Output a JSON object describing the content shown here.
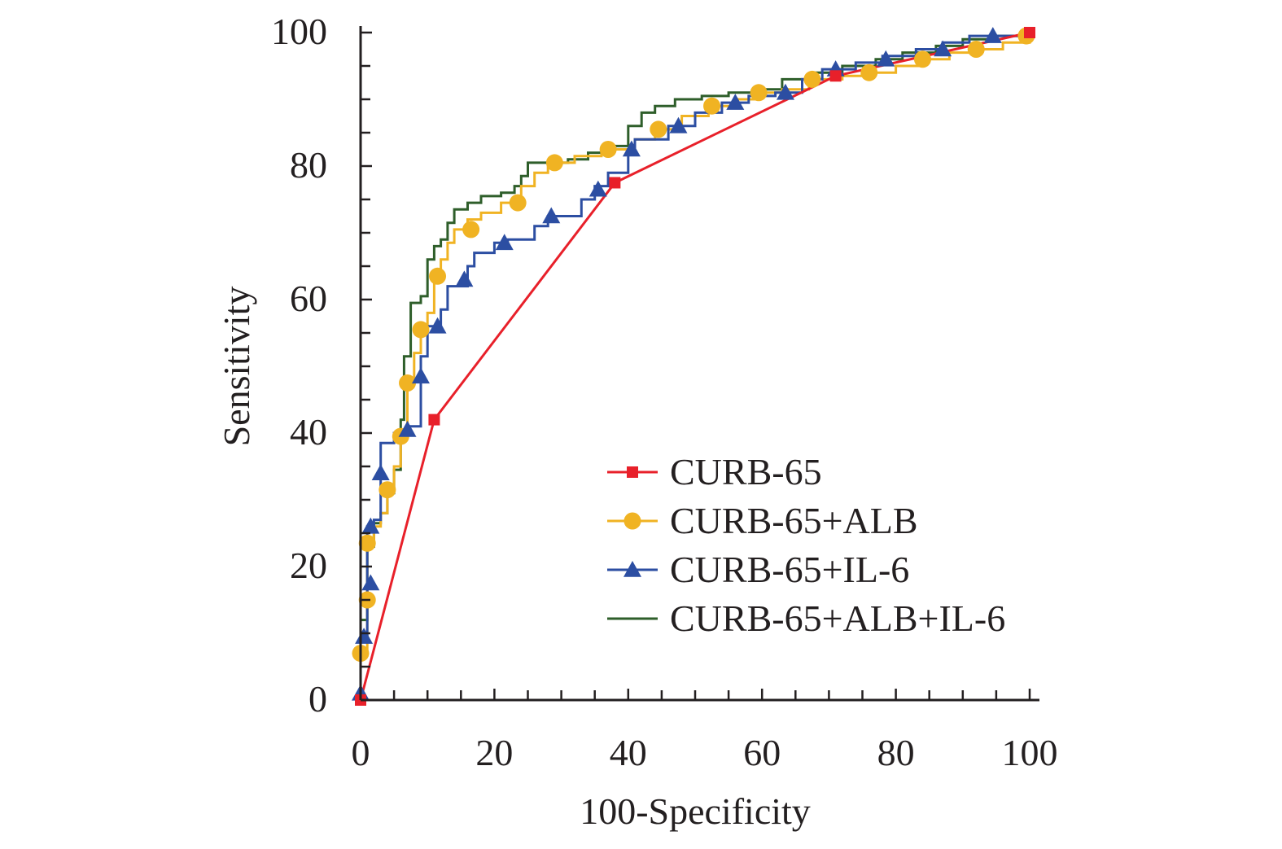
{
  "chart_data": {
    "type": "line",
    "title": "",
    "xlabel": "100-Specificity",
    "ylabel": "Sensitivity",
    "xlim": [
      0,
      100
    ],
    "ylim": [
      0,
      100
    ],
    "x_ticks": [
      "0",
      "20",
      "40",
      "60",
      "80",
      "100"
    ],
    "y_ticks": [
      "0",
      "20",
      "40",
      "60",
      "80",
      "100"
    ],
    "grid": false,
    "legend_placement": "bottom-right",
    "series": [
      {
        "name": "CURB-65",
        "color": "#e8202a",
        "marker": "square",
        "step": false,
        "points": [
          [
            0,
            0
          ],
          [
            11,
            42
          ],
          [
            38,
            77.5
          ],
          [
            71,
            93.5
          ],
          [
            100,
            100
          ]
        ],
        "marker_points": [
          [
            0,
            0
          ],
          [
            11,
            42
          ],
          [
            38,
            77.5
          ],
          [
            71,
            93.5
          ],
          [
            100,
            100
          ]
        ]
      },
      {
        "name": "CURB-65+ALB",
        "color": "#f0b323",
        "marker": "circle",
        "step": true,
        "points": [
          [
            0,
            0
          ],
          [
            0,
            7
          ],
          [
            1,
            7
          ],
          [
            1,
            15
          ],
          [
            1,
            23.5
          ],
          [
            2,
            23.5
          ],
          [
            2,
            26
          ],
          [
            3,
            26
          ],
          [
            3,
            28
          ],
          [
            4,
            28
          ],
          [
            4,
            31.5
          ],
          [
            5,
            31.5
          ],
          [
            5,
            35
          ],
          [
            6,
            35
          ],
          [
            6,
            39.5
          ],
          [
            7,
            39.5
          ],
          [
            7,
            47.5
          ],
          [
            8,
            47.5
          ],
          [
            8,
            52
          ],
          [
            9,
            52
          ],
          [
            9,
            55.5
          ],
          [
            10,
            55.5
          ],
          [
            10,
            58
          ],
          [
            11,
            58
          ],
          [
            11,
            63.5
          ],
          [
            12,
            63.5
          ],
          [
            12,
            66
          ],
          [
            13,
            66
          ],
          [
            13,
            68.5
          ],
          [
            14,
            68.5
          ],
          [
            14,
            70.5
          ],
          [
            16,
            70.5
          ],
          [
            16,
            72
          ],
          [
            18,
            72
          ],
          [
            18,
            73
          ],
          [
            21,
            73
          ],
          [
            21,
            74.5
          ],
          [
            24,
            74.5
          ],
          [
            24,
            77
          ],
          [
            26,
            77
          ],
          [
            26,
            79
          ],
          [
            28,
            79
          ],
          [
            28,
            80.5
          ],
          [
            32,
            80.5
          ],
          [
            32,
            81.5
          ],
          [
            36,
            81.5
          ],
          [
            36,
            82.5
          ],
          [
            41,
            82.5
          ],
          [
            41,
            84
          ],
          [
            44,
            84
          ],
          [
            44,
            85.5
          ],
          [
            48,
            85.5
          ],
          [
            48,
            87.5
          ],
          [
            52,
            87.5
          ],
          [
            52,
            89
          ],
          [
            56,
            89
          ],
          [
            56,
            90
          ],
          [
            59,
            90
          ],
          [
            59,
            91
          ],
          [
            63,
            91
          ],
          [
            63,
            91.5
          ],
          [
            67,
            91.5
          ],
          [
            67,
            93
          ],
          [
            72,
            93
          ],
          [
            72,
            93.5
          ],
          [
            76,
            93.5
          ],
          [
            76,
            94
          ],
          [
            80,
            94
          ],
          [
            80,
            95
          ],
          [
            84,
            95
          ],
          [
            84,
            96
          ],
          [
            88,
            96
          ],
          [
            88,
            97
          ],
          [
            92,
            97
          ],
          [
            92,
            97.5
          ],
          [
            96,
            97.5
          ],
          [
            96,
            98.5
          ],
          [
            100,
            98.5
          ],
          [
            100,
            100
          ]
        ],
        "marker_points": [
          [
            0,
            7
          ],
          [
            1,
            15
          ],
          [
            1,
            23.5
          ],
          [
            4,
            31.5
          ],
          [
            6,
            39.5
          ],
          [
            7,
            47.5
          ],
          [
            9,
            55.5
          ],
          [
            11.5,
            63.5
          ],
          [
            16.5,
            70.5
          ],
          [
            23.5,
            74.5
          ],
          [
            29,
            80.5
          ],
          [
            37,
            82.5
          ],
          [
            44.5,
            85.5
          ],
          [
            52.5,
            89
          ],
          [
            59.5,
            91
          ],
          [
            67.5,
            93
          ],
          [
            76,
            94
          ],
          [
            84,
            96
          ],
          [
            92,
            97.5
          ],
          [
            99.5,
            99.5
          ]
        ]
      },
      {
        "name": "CURB-65+IL-6",
        "color": "#2c4ea2",
        "marker": "triangle",
        "step": true,
        "points": [
          [
            0,
            0
          ],
          [
            0,
            1
          ],
          [
            0,
            9.5
          ],
          [
            1,
            9.5
          ],
          [
            1,
            17.5
          ],
          [
            1,
            26
          ],
          [
            2,
            26
          ],
          [
            2,
            27
          ],
          [
            3,
            27
          ],
          [
            3,
            34
          ],
          [
            3,
            38.5
          ],
          [
            5,
            38.5
          ],
          [
            5,
            40
          ],
          [
            7,
            40
          ],
          [
            7,
            41
          ],
          [
            9,
            41
          ],
          [
            9,
            48.5
          ],
          [
            9,
            51.5
          ],
          [
            10,
            51.5
          ],
          [
            10,
            56
          ],
          [
            12,
            56
          ],
          [
            12,
            58.5
          ],
          [
            13,
            58.5
          ],
          [
            13,
            62
          ],
          [
            16,
            62
          ],
          [
            16,
            65
          ],
          [
            17,
            65
          ],
          [
            17,
            67
          ],
          [
            20,
            67
          ],
          [
            20,
            68.5
          ],
          [
            22,
            68.5
          ],
          [
            22,
            69
          ],
          [
            26,
            69
          ],
          [
            26,
            71
          ],
          [
            28,
            71
          ],
          [
            28,
            72.5
          ],
          [
            33,
            72.5
          ],
          [
            33,
            75
          ],
          [
            35,
            75
          ],
          [
            35,
            77
          ],
          [
            37,
            77
          ],
          [
            37,
            79
          ],
          [
            40,
            79
          ],
          [
            40,
            82.5
          ],
          [
            41,
            82.5
          ],
          [
            41,
            84
          ],
          [
            46,
            84
          ],
          [
            46,
            86
          ],
          [
            50,
            86
          ],
          [
            50,
            88
          ],
          [
            54,
            88
          ],
          [
            54,
            89.5
          ],
          [
            58,
            89.5
          ],
          [
            58,
            90.5
          ],
          [
            62,
            90.5
          ],
          [
            62,
            91
          ],
          [
            66,
            91
          ],
          [
            66,
            93
          ],
          [
            69,
            93
          ],
          [
            69,
            94.5
          ],
          [
            74,
            94.5
          ],
          [
            74,
            95.5
          ],
          [
            78,
            95.5
          ],
          [
            78,
            96.5
          ],
          [
            83,
            96.5
          ],
          [
            83,
            97.5
          ],
          [
            87,
            97.5
          ],
          [
            87,
            98.5
          ],
          [
            91,
            98.5
          ],
          [
            91,
            99.5
          ],
          [
            100,
            99.5
          ],
          [
            100,
            100
          ]
        ],
        "marker_points": [
          [
            0,
            1
          ],
          [
            0.5,
            9.5
          ],
          [
            1.5,
            17.5
          ],
          [
            1.5,
            26
          ],
          [
            3,
            34
          ],
          [
            7,
            40.5
          ],
          [
            9,
            48.5
          ],
          [
            11.5,
            56
          ],
          [
            15.5,
            63
          ],
          [
            21.5,
            68.5
          ],
          [
            28.5,
            72.5
          ],
          [
            35.5,
            76.5
          ],
          [
            40.5,
            82.5
          ],
          [
            47.5,
            86
          ],
          [
            56,
            89.5
          ],
          [
            63.5,
            91
          ],
          [
            71,
            94.5
          ],
          [
            78.5,
            96
          ],
          [
            87,
            97.5
          ],
          [
            94.5,
            99.5
          ]
        ]
      },
      {
        "name": "CURB-65+ALB+IL-6",
        "color": "#2e5e2a",
        "marker": "none",
        "step": true,
        "points": [
          [
            0,
            0
          ],
          [
            0,
            12
          ],
          [
            1,
            12
          ],
          [
            1,
            23
          ],
          [
            2,
            23
          ],
          [
            2,
            26.5
          ],
          [
            3,
            26.5
          ],
          [
            3,
            28
          ],
          [
            4,
            28
          ],
          [
            4,
            31
          ],
          [
            5,
            31
          ],
          [
            5,
            34.5
          ],
          [
            6,
            34.5
          ],
          [
            6,
            42
          ],
          [
            6.5,
            42
          ],
          [
            6.5,
            51.5
          ],
          [
            7.5,
            51.5
          ],
          [
            7.5,
            59.5
          ],
          [
            9,
            59.5
          ],
          [
            9,
            60.5
          ],
          [
            10,
            60.5
          ],
          [
            10,
            66
          ],
          [
            11,
            66
          ],
          [
            11,
            68
          ],
          [
            12,
            68
          ],
          [
            12,
            69
          ],
          [
            13,
            69
          ],
          [
            13,
            71.5
          ],
          [
            14,
            71.5
          ],
          [
            14,
            73.5
          ],
          [
            16,
            73.5
          ],
          [
            16,
            74.5
          ],
          [
            18,
            74.5
          ],
          [
            18,
            75.5
          ],
          [
            21,
            75.5
          ],
          [
            21,
            76
          ],
          [
            23,
            76
          ],
          [
            23,
            77
          ],
          [
            24,
            77
          ],
          [
            24,
            78.5
          ],
          [
            25,
            78.5
          ],
          [
            25,
            80.5
          ],
          [
            31,
            80.5
          ],
          [
            31,
            81
          ],
          [
            34,
            81
          ],
          [
            34,
            82
          ],
          [
            37,
            82
          ],
          [
            37,
            83
          ],
          [
            40,
            83
          ],
          [
            40,
            86
          ],
          [
            42,
            86
          ],
          [
            42,
            88
          ],
          [
            44,
            88
          ],
          [
            44,
            89
          ],
          [
            47,
            89
          ],
          [
            47,
            90
          ],
          [
            51,
            90
          ],
          [
            51,
            90.5
          ],
          [
            55,
            90.5
          ],
          [
            55,
            91
          ],
          [
            60,
            91
          ],
          [
            60,
            91.5
          ],
          [
            63,
            91.5
          ],
          [
            63,
            93
          ],
          [
            68,
            93
          ],
          [
            68,
            94
          ],
          [
            72,
            94
          ],
          [
            72,
            95
          ],
          [
            77,
            95
          ],
          [
            77,
            96
          ],
          [
            81,
            96
          ],
          [
            81,
            97
          ],
          [
            86,
            97
          ],
          [
            86,
            98
          ],
          [
            90,
            98
          ],
          [
            90,
            99
          ],
          [
            95,
            99
          ],
          [
            95,
            99.5
          ],
          [
            100,
            99.5
          ],
          [
            100,
            100
          ]
        ],
        "marker_points": []
      }
    ]
  }
}
